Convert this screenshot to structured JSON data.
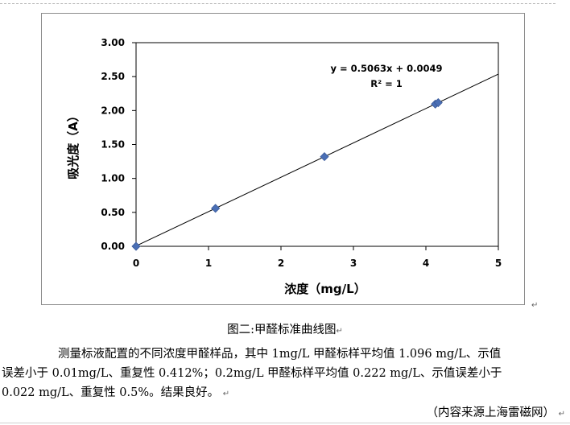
{
  "chart_data": {
    "type": "scatter",
    "x": [
      0,
      1.096,
      2.6,
      4.13,
      4.17
    ],
    "y": [
      0.0,
      0.559,
      1.321,
      2.095,
      2.116
    ],
    "xlabel": "浓度（mg/L）",
    "ylabel": "吸光度（A）",
    "xlim": [
      0,
      5
    ],
    "ylim": [
      0,
      3
    ],
    "x_ticks": [
      "0",
      "1",
      "2",
      "3",
      "4",
      "5"
    ],
    "y_ticks": [
      "0.00",
      "0.50",
      "1.00",
      "1.50",
      "2.00",
      "2.50",
      "3.00"
    ],
    "trendline": {
      "slope": 0.5063,
      "intercept": 0.0049
    },
    "equation_label": "y = 0.5063x + 0.0049",
    "r2_label": "R² = 1",
    "grid": false,
    "marker_color": "#4a6fb5",
    "line_color": "#000000"
  },
  "caption": "图二:甲醛标准曲线图",
  "paragraph": {
    "line1": "测量标液配置的不同浓度甲醛样品，其中 1mg/L 甲醛标样平均值 1.096 mg/L、示值",
    "line2": "误差小于 0.01mg/L、重复性 0.412%；0.2mg/L 甲醛标样平均值 0.222 mg/L、示值误差小于",
    "line3": "0.022 mg/L、重复性 0.5%。结果良好。"
  },
  "source": "（内容来源上海雷磁网）",
  "paragraph_mark": "↵"
}
